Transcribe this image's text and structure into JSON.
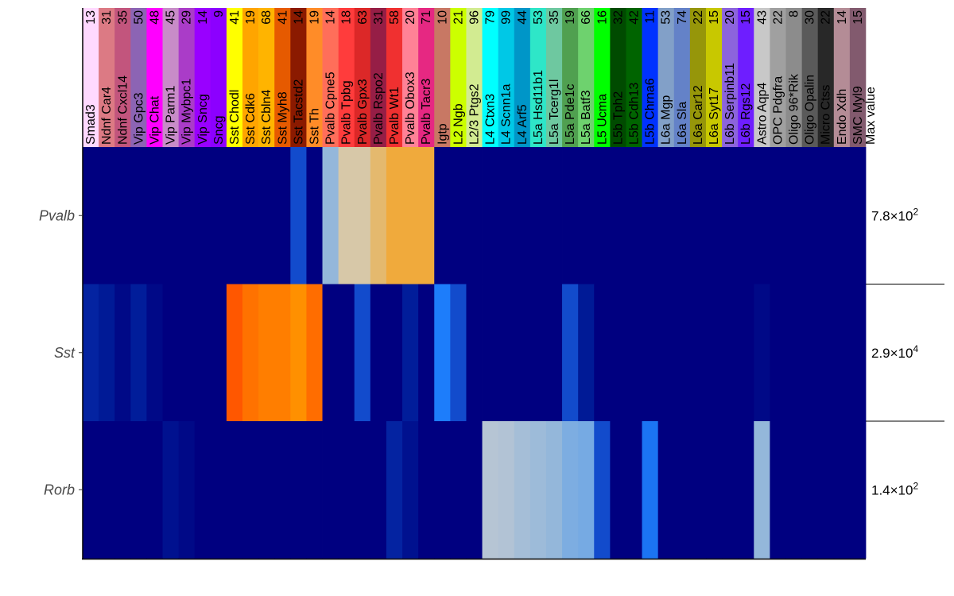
{
  "chart_data": {
    "type": "heatmap",
    "max_value_label": "Max value",
    "x_multiply_sign": "×",
    "clusters": [
      {
        "name": "Smad3",
        "count": "13",
        "color": "#FFD9FF"
      },
      {
        "name": "Ndnf Car4",
        "count": "31",
        "color": "#DC7A84"
      },
      {
        "name": "Ndnf Cxcl14",
        "count": "35",
        "color": "#C2557D"
      },
      {
        "name": "Vip Gpc3",
        "count": "50",
        "color": "#8C64B4"
      },
      {
        "name": "Vip Chat",
        "count": "48",
        "color": "#FF00FF"
      },
      {
        "name": "Vip Parm1",
        "count": "45",
        "color": "#C88CC8"
      },
      {
        "name": "Vip Mybpc1",
        "count": "29",
        "color": "#AA3CC8"
      },
      {
        "name": "Vip Sncg",
        "count": "14",
        "color": "#9900FF"
      },
      {
        "name": "Sncg",
        "count": "9",
        "color": "#8C00FF"
      },
      {
        "name": "Sst Chodl",
        "count": "41",
        "color": "#FFFF00"
      },
      {
        "name": "Sst Cdk6",
        "count": "19",
        "color": "#FFA500"
      },
      {
        "name": "Sst Cbln4",
        "count": "68",
        "color": "#FFB400"
      },
      {
        "name": "Sst Myh8",
        "count": "41",
        "color": "#E65A00"
      },
      {
        "name": "Sst Tacstd2",
        "count": "14",
        "color": "#8B1A00"
      },
      {
        "name": "Sst Th",
        "count": "19",
        "color": "#FF8C28"
      },
      {
        "name": "Pvalb Cpne5",
        "count": "14",
        "color": "#FF6E5A"
      },
      {
        "name": "Pvalb Tpbg",
        "count": "18",
        "color": "#FF3C3C"
      },
      {
        "name": "Pvalb Gpx3",
        "count": "63",
        "color": "#DC2828"
      },
      {
        "name": "Pvalb Rspo2",
        "count": "31",
        "color": "#961E46"
      },
      {
        "name": "Pvalb Wt1",
        "count": "58",
        "color": "#F03030"
      },
      {
        "name": "Pvalb Obox3",
        "count": "20",
        "color": "#FF8296"
      },
      {
        "name": "Pvalb Tacr3",
        "count": "71",
        "color": "#E62882"
      },
      {
        "name": "Igtp",
        "count": "10",
        "color": "#C87864"
      },
      {
        "name": "L2 Ngb",
        "count": "21",
        "color": "#CCFF00"
      },
      {
        "name": "L2/3 Ptgs2",
        "count": "96",
        "color": "#D2EB91"
      },
      {
        "name": "L4 Ctxn3",
        "count": "79",
        "color": "#00FFFF"
      },
      {
        "name": "L4 Scnn1a",
        "count": "99",
        "color": "#00C8E6"
      },
      {
        "name": "L4 Arf5",
        "count": "44",
        "color": "#0096C8"
      },
      {
        "name": "L5a Hsd11b1",
        "count": "53",
        "color": "#2EE6C8"
      },
      {
        "name": "L5a Tcerg1l",
        "count": "35",
        "color": "#6EC8A0"
      },
      {
        "name": "L5a Pde1c",
        "count": "19",
        "color": "#50A050"
      },
      {
        "name": "L5a Batf3",
        "count": "66",
        "color": "#6ED26E"
      },
      {
        "name": "L5 Ucma",
        "count": "16",
        "color": "#00FF00"
      },
      {
        "name": "L5b Tph2",
        "count": "32",
        "color": "#004B00"
      },
      {
        "name": "L5b Cdh13",
        "count": "42",
        "color": "#006400"
      },
      {
        "name": "L5b Chrna6",
        "count": "11",
        "color": "#0032FF"
      },
      {
        "name": "L6a Mgp",
        "count": "53",
        "color": "#82A0C8"
      },
      {
        "name": "L6a Sla",
        "count": "74",
        "color": "#6482C8"
      },
      {
        "name": "L6a Car12",
        "count": "22",
        "color": "#96960A"
      },
      {
        "name": "L6a Syt17",
        "count": "15",
        "color": "#C8C800"
      },
      {
        "name": "L6b Serpinb11",
        "count": "20",
        "color": "#8C64DC"
      },
      {
        "name": "L6b Rgs12",
        "count": "15",
        "color": "#6E1EFF"
      },
      {
        "name": "Astro Aqp4",
        "count": "43",
        "color": "#C8C8C8"
      },
      {
        "name": "OPC Pdgfra",
        "count": "22",
        "color": "#A0A0A0"
      },
      {
        "name": "Oligo 96*Rik",
        "count": "8",
        "color": "#8C8C8C"
      },
      {
        "name": "Oligo Opalin",
        "count": "30",
        "color": "#5A5A5A"
      },
      {
        "name": "Micro Ctss",
        "count": "22",
        "color": "#282828"
      },
      {
        "name": "Endo Xdh",
        "count": "14",
        "color": "#B48C96"
      },
      {
        "name": "SMC Myl9",
        "count": "15",
        "color": "#825A6E"
      }
    ],
    "rows": [
      {
        "gene": "Pvalb",
        "max_value": 780,
        "max_label_mantissa": "7.8",
        "max_label_exponent": "2",
        "values": [
          0,
          0,
          0,
          0,
          0,
          0,
          0,
          0,
          0,
          0,
          0,
          0,
          0,
          0.2,
          0,
          0.5,
          0.72,
          0.72,
          0.78,
          0.82,
          0.82,
          0.82,
          0,
          0,
          0,
          0,
          0,
          0,
          0,
          0,
          0,
          0,
          0,
          0,
          0,
          0,
          0,
          0,
          0,
          0,
          0,
          0,
          0,
          0,
          0,
          0,
          0,
          0,
          0
        ]
      },
      {
        "gene": "Sst",
        "max_value": 29000,
        "max_label_mantissa": "2.9",
        "max_label_exponent": "4",
        "values": [
          0.06,
          0.03,
          0.01,
          0.04,
          0.01,
          0,
          0,
          0,
          0,
          0.97,
          0.92,
          0.9,
          0.9,
          0.87,
          0.93,
          0,
          0,
          0.2,
          0,
          0,
          0.04,
          0,
          0.32,
          0.2,
          0,
          0,
          0,
          0,
          0,
          0,
          0.2,
          0.03,
          0,
          0,
          0,
          0,
          0,
          0,
          0,
          0,
          0,
          0,
          0.01,
          0,
          0,
          0,
          0,
          0,
          0
        ]
      },
      {
        "gene": "Rorb",
        "max_value": 140,
        "max_label_mantissa": "1.4",
        "max_label_exponent": "2",
        "values": [
          0,
          0,
          0,
          0,
          0,
          0.02,
          0.01,
          0,
          0,
          0,
          0,
          0,
          0,
          0,
          0,
          0,
          0,
          0,
          0,
          0.06,
          0.02,
          0,
          0,
          0,
          0,
          0.58,
          0.57,
          0.54,
          0.52,
          0.5,
          0.46,
          0.45,
          0.2,
          0,
          0,
          0.3,
          0,
          0,
          0,
          0,
          0,
          0,
          0.5,
          0,
          0,
          0,
          0,
          0,
          0
        ]
      }
    ],
    "color_scale": [
      {
        "stop": 0.0,
        "color": "#000080"
      },
      {
        "stop": 0.03,
        "color": "#001A96"
      },
      {
        "stop": 0.1,
        "color": "#0A30B0"
      },
      {
        "stop": 0.22,
        "color": "#1450D2"
      },
      {
        "stop": 0.33,
        "color": "#1E82FF"
      },
      {
        "stop": 0.48,
        "color": "#8CB4DC"
      },
      {
        "stop": 0.6,
        "color": "#BEC8D2"
      },
      {
        "stop": 0.72,
        "color": "#D7C8A8"
      },
      {
        "stop": 0.8,
        "color": "#E8B45A"
      },
      {
        "stop": 0.86,
        "color": "#FF9600"
      },
      {
        "stop": 0.91,
        "color": "#FF7800"
      },
      {
        "stop": 1.0,
        "color": "#FF4600"
      }
    ]
  }
}
